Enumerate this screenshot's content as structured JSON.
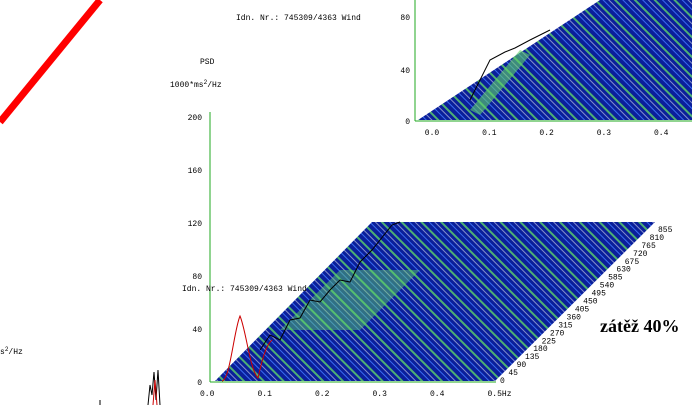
{
  "top_plot": {
    "id_label": "Idn. Nr.: 745309/4363 Wind",
    "yticks": [
      "80",
      "40",
      "0"
    ],
    "xticks": [
      "0.0",
      "0.1",
      "0.2",
      "0.3",
      "0.4"
    ]
  },
  "main_plot": {
    "psd_label": "PSD",
    "unit_prefix": "1000*ms",
    "unit_exp": "2",
    "unit_suffix": "/Hz",
    "yticks": [
      "200",
      "160",
      "120",
      "80",
      "40",
      "0"
    ],
    "xticks": [
      "0.0",
      "0.1",
      "0.2",
      "0.3",
      "0.4",
      "0.5Hz"
    ],
    "depth_labels": [
      "0",
      "45",
      "90",
      "135",
      "180",
      "225",
      "270",
      "315",
      "360",
      "405",
      "450",
      "495",
      "540",
      "585",
      "630",
      "675",
      "720",
      "765",
      "810",
      "855"
    ],
    "annotation": "zátěž 40%",
    "id_label": "Idn. Nr.: 745309/4363 Wind"
  },
  "bottom_left": {
    "unit_prefix": "s",
    "unit_exp": "2",
    "unit_suffix": "/Hz"
  }
}
